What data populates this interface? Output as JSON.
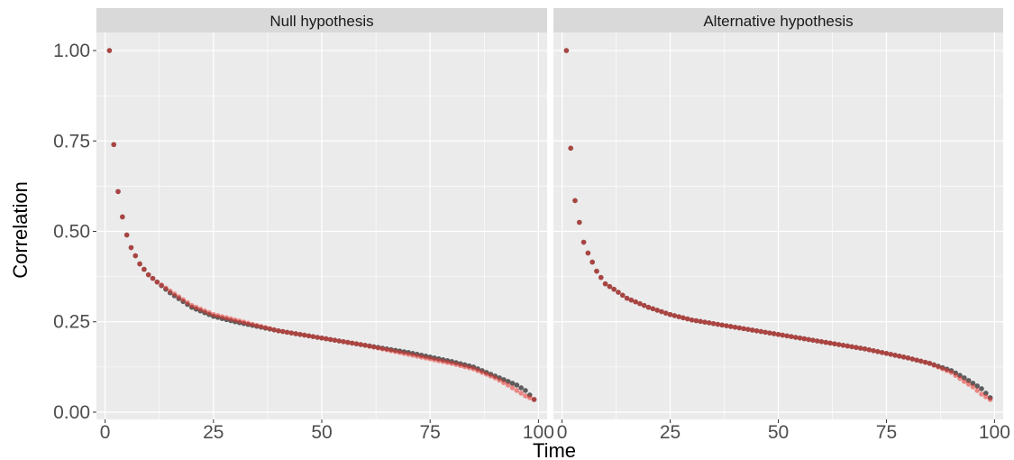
{
  "chart_data": {
    "type": "scatter",
    "xlabel": "Time",
    "ylabel": "Correlation",
    "xlim": [
      -2,
      102
    ],
    "ylim": [
      -0.02,
      1.05
    ],
    "x_ticks": [
      0,
      25,
      50,
      75,
      100
    ],
    "y_ticks": [
      0.0,
      0.25,
      0.5,
      0.75,
      1.0
    ],
    "x_tick_labels": [
      "0",
      "25",
      "50",
      "75",
      "100"
    ],
    "y_tick_labels": [
      "0.00",
      "0.25",
      "0.50",
      "0.75",
      "1.00"
    ],
    "grid": true,
    "legend": "none",
    "colors": {
      "panel_background": "#ebebeb",
      "strip_background": "#d9d9d9",
      "gridline": "#ffffff",
      "series_dark": "#4d4d4d",
      "series_red": "#e8332e"
    },
    "panels": [
      {
        "title": "Null hypothesis",
        "series": [
          {
            "color": "#4d4d4d",
            "x": [
              1,
              2,
              3,
              4,
              5,
              6,
              8,
              10,
              12,
              15,
              20,
              25,
              30,
              40,
              50,
              60,
              70,
              80,
              85,
              90,
              93,
              95,
              97,
              99
            ],
            "y": [
              1.0,
              0.74,
              0.61,
              0.54,
              0.49,
              0.455,
              0.41,
              0.38,
              0.36,
              0.33,
              0.29,
              0.265,
              0.25,
              0.225,
              0.205,
              0.185,
              0.165,
              0.14,
              0.125,
              0.1,
              0.085,
              0.075,
              0.06,
              0.035
            ]
          },
          {
            "color": "#e8332e",
            "x": [
              1,
              2,
              3,
              4,
              5,
              6,
              8,
              10,
              12,
              15,
              20,
              25,
              30,
              40,
              50,
              60,
              70,
              80,
              85,
              90,
              93,
              95,
              97,
              99
            ],
            "y": [
              1.0,
              0.74,
              0.61,
              0.54,
              0.49,
              0.455,
              0.41,
              0.38,
              0.36,
              0.335,
              0.295,
              0.27,
              0.255,
              0.225,
              0.205,
              0.185,
              0.16,
              0.135,
              0.12,
              0.095,
              0.075,
              0.06,
              0.045,
              0.035
            ]
          }
        ]
      },
      {
        "title": "Alternative hypothesis",
        "series": [
          {
            "color": "#4d4d4d",
            "x": [
              1,
              2,
              3,
              4,
              5,
              6,
              8,
              10,
              12,
              15,
              20,
              25,
              30,
              40,
              50,
              60,
              70,
              80,
              85,
              90,
              93,
              95,
              97,
              99
            ],
            "y": [
              1.0,
              0.73,
              0.585,
              0.525,
              0.47,
              0.44,
              0.39,
              0.355,
              0.34,
              0.315,
              0.29,
              0.27,
              0.255,
              0.235,
              0.215,
              0.195,
              0.175,
              0.15,
              0.135,
              0.115,
              0.095,
              0.08,
              0.065,
              0.04
            ]
          },
          {
            "color": "#e8332e",
            "x": [
              1,
              2,
              3,
              4,
              5,
              6,
              8,
              10,
              12,
              15,
              20,
              25,
              30,
              40,
              50,
              60,
              70,
              80,
              85,
              90,
              93,
              95,
              97,
              99
            ],
            "y": [
              1.0,
              0.73,
              0.585,
              0.525,
              0.47,
              0.44,
              0.39,
              0.355,
              0.34,
              0.315,
              0.29,
              0.27,
              0.255,
              0.235,
              0.215,
              0.195,
              0.175,
              0.15,
              0.135,
              0.11,
              0.085,
              0.07,
              0.05,
              0.035
            ]
          }
        ]
      }
    ]
  }
}
